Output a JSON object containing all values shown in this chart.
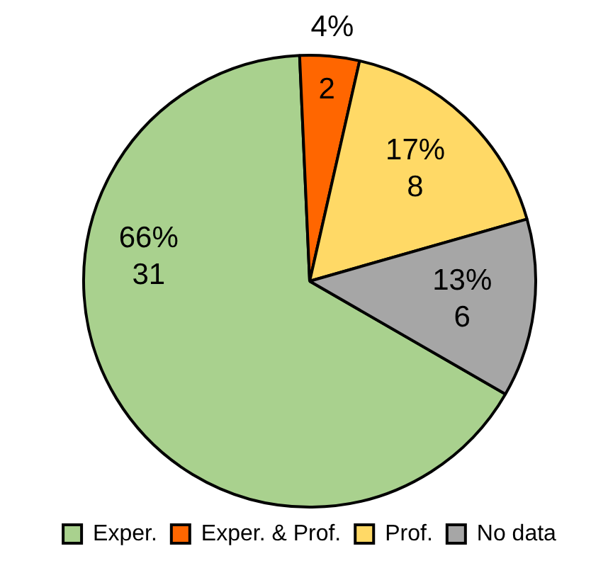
{
  "chart_data": {
    "type": "pie",
    "categories": [
      "Exper.",
      "Exper. & Prof.",
      "Prof.",
      "No data"
    ],
    "values": [
      31,
      2,
      8,
      6
    ],
    "colors": [
      "#a9d18e",
      "#ff6600",
      "#ffd966",
      "#a6a6a6"
    ],
    "value_labels": [
      "66%\n31",
      "4%\n2",
      "17%\n8",
      "13%\n6"
    ],
    "legend": "bottom"
  }
}
